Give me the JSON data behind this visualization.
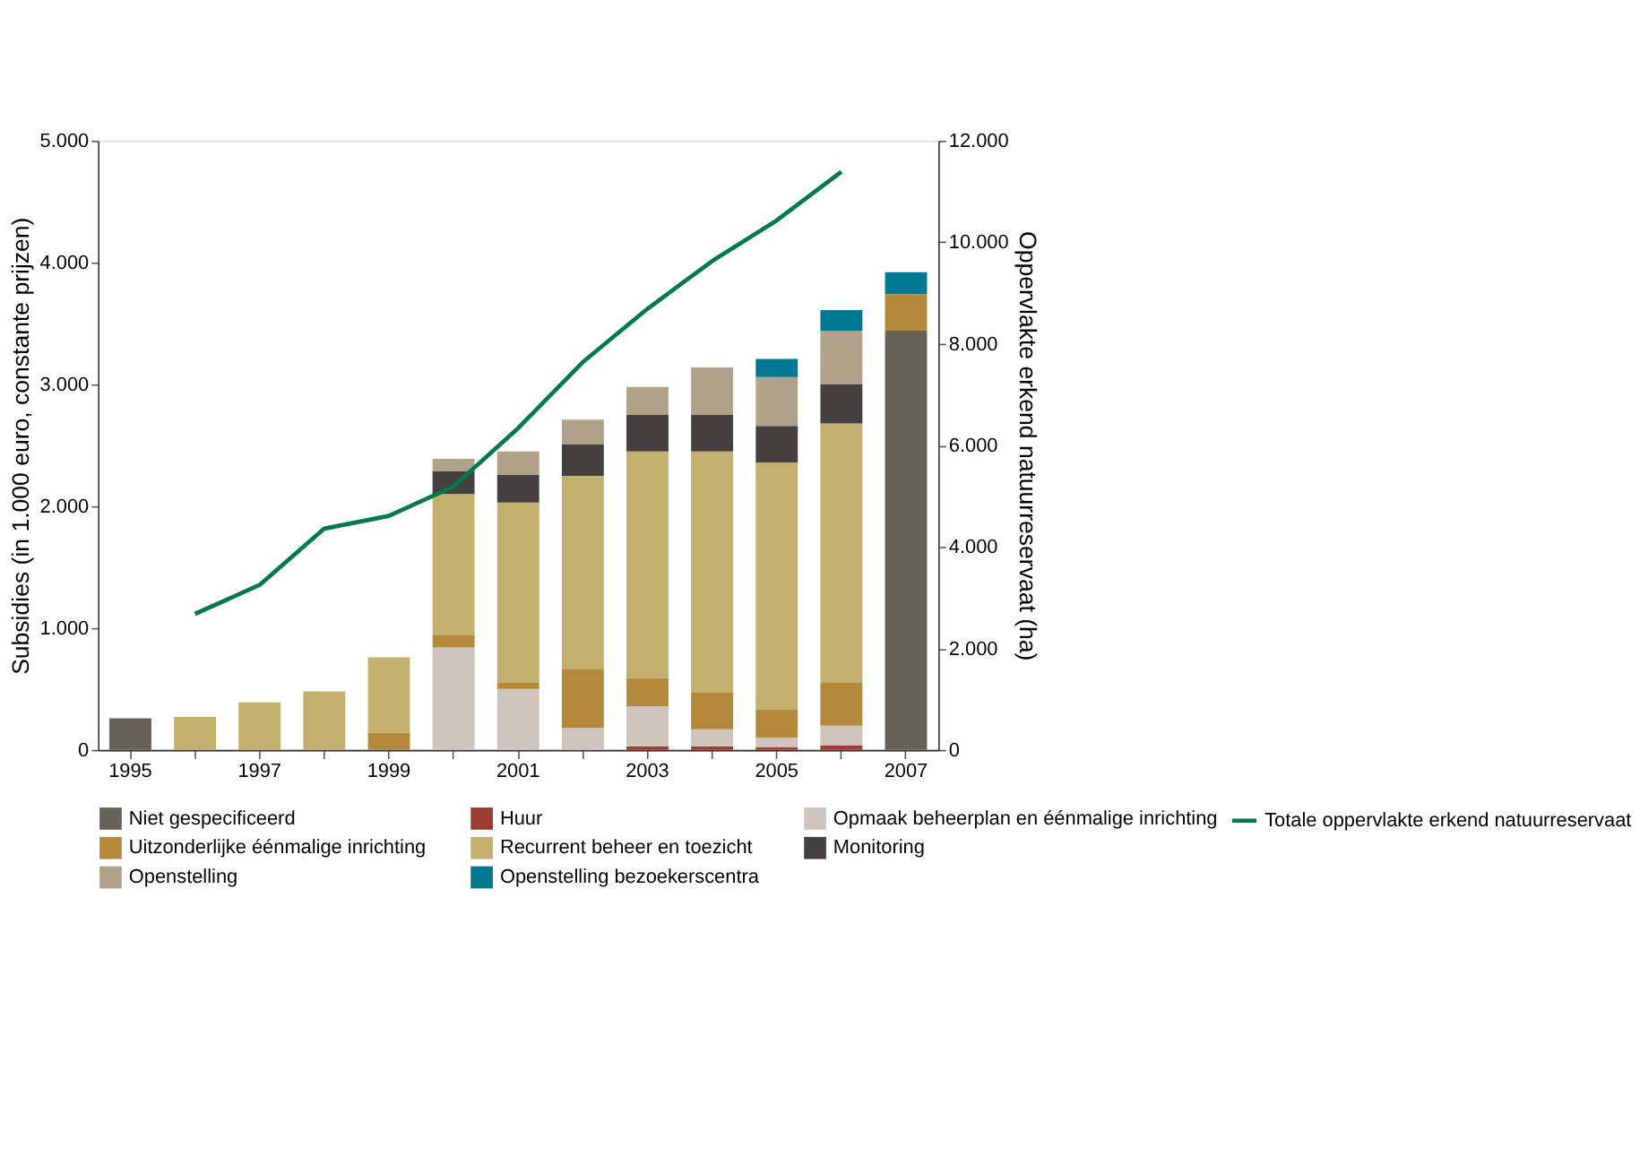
{
  "chart_data": {
    "type": "bar",
    "stacked": true,
    "categories": [
      "1995",
      null,
      "1997",
      null,
      "1999",
      null,
      "2001",
      null,
      "2003",
      null,
      "2005",
      null,
      "2007"
    ],
    "ylabel": "Subsidies (in 1.000 euro, constante prijzen)",
    "y2label": "Oppervlakte erkend natuurreservaat (ha)",
    "ylim": [
      0,
      5000
    ],
    "yticks": [
      {
        "value": 0,
        "label": "0"
      },
      {
        "value": 1000,
        "label": "1.000"
      },
      {
        "value": 2000,
        "label": "2.000"
      },
      {
        "value": 3000,
        "label": "3.000"
      },
      {
        "value": 4000,
        "label": "4.000"
      },
      {
        "value": 5000,
        "label": "5.000"
      }
    ],
    "y2lim": [
      0,
      12000
    ],
    "y2ticks": [
      {
        "value": 0,
        "label": "0"
      },
      {
        "value": 2000,
        "label": "2.000"
      },
      {
        "value": 4000,
        "label": "4.000"
      },
      {
        "value": 6000,
        "label": "6.000"
      },
      {
        "value": 8000,
        "label": "8.000"
      },
      {
        "value": 10000,
        "label": "10.000"
      },
      {
        "value": 12000,
        "label": "12.000"
      }
    ],
    "grid": false,
    "legend": "bottom",
    "series": [
      {
        "name": "Niet gespecificeerd",
        "color": "#666258",
        "values": [
          260,
          null,
          null,
          null,
          null,
          null,
          null,
          null,
          null,
          null,
          null,
          null,
          3440
        ]
      },
      {
        "name": "Huur",
        "color": "#9e3b32",
        "values": [
          null,
          null,
          null,
          null,
          null,
          null,
          null,
          null,
          30,
          30,
          20,
          40,
          null
        ]
      },
      {
        "name": "Opmaak beheerplan en éénmalige inrichting",
        "color": "#cdc4bd",
        "values": [
          null,
          null,
          null,
          null,
          null,
          840,
          500,
          180,
          330,
          140,
          80,
          160,
          null
        ]
      },
      {
        "name": "Uitzonderlijke éénmalige inrichting",
        "color": "#b38a3b",
        "values": [
          null,
          null,
          null,
          null,
          140,
          100,
          50,
          480,
          230,
          300,
          230,
          350,
          300
        ]
      },
      {
        "name": "Recurrent beheer en toezicht",
        "color": "#c3af6e",
        "values": [
          null,
          270,
          390,
          480,
          620,
          1160,
          1480,
          1590,
          1860,
          1980,
          2030,
          2130,
          null
        ]
      },
      {
        "name": "Monitoring",
        "color": "#454040",
        "values": [
          null,
          null,
          null,
          null,
          null,
          190,
          230,
          260,
          300,
          300,
          300,
          320,
          null
        ]
      },
      {
        "name": "Openstelling",
        "color": "#b0a28a",
        "values": [
          null,
          null,
          null,
          null,
          null,
          100,
          190,
          200,
          230,
          390,
          400,
          440,
          null
        ]
      },
      {
        "name": "Openstelling bezoekerscentra",
        "color": "#007893",
        "values": [
          null,
          null,
          null,
          null,
          null,
          null,
          null,
          null,
          null,
          null,
          150,
          170,
          180
        ]
      },
      {
        "name": "Totale oppervlakte erkend natuurreservaat",
        "color": "#007a4a",
        "type": "line",
        "axis": "y2",
        "values": [
          null,
          2680,
          3250,
          4360,
          4610,
          5190,
          6340,
          7640,
          8690,
          9630,
          10430,
          11390,
          null
        ]
      }
    ]
  }
}
